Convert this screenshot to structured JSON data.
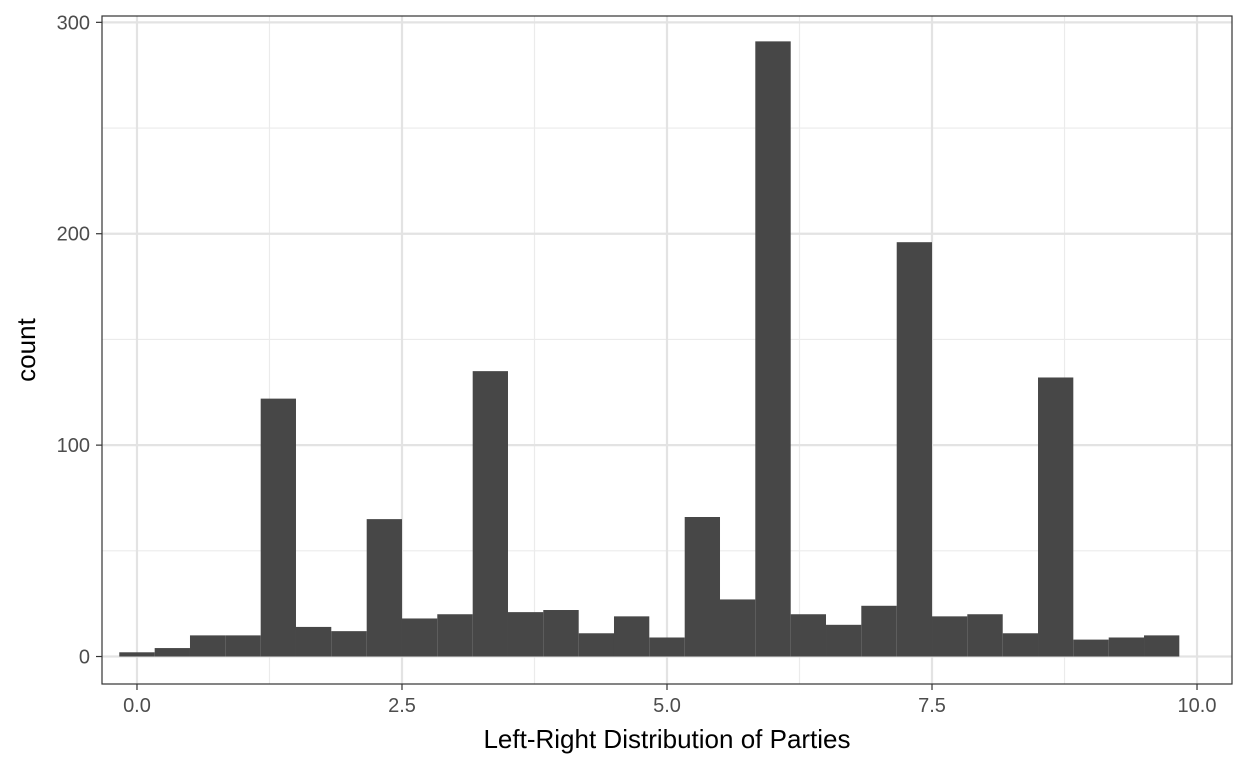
{
  "chart_data": {
    "type": "histogram",
    "title": "",
    "xlabel": "Left-Right Distribution of Parties",
    "ylabel": "count",
    "xlim": [
      -0.33,
      10.33
    ],
    "ylim": [
      -13,
      303
    ],
    "x_ticks": [
      0.0,
      2.5,
      5.0,
      7.5,
      10.0
    ],
    "x_tick_labels": [
      "0.0",
      "2.5",
      "5.0",
      "7.5",
      "10.0"
    ],
    "y_ticks": [
      0,
      100,
      200,
      300
    ],
    "y_tick_labels": [
      "0",
      "100",
      "200",
      "300"
    ],
    "y_minor_ticks": [
      50,
      150,
      250
    ],
    "grid": true,
    "bar_color": "#474747",
    "bins": [
      {
        "x0": -0.167,
        "x1": 0.167,
        "count": 2
      },
      {
        "x0": 0.167,
        "x1": 0.5,
        "count": 4
      },
      {
        "x0": 0.5,
        "x1": 0.833,
        "count": 10
      },
      {
        "x0": 0.833,
        "x1": 1.167,
        "count": 10
      },
      {
        "x0": 1.167,
        "x1": 1.5,
        "count": 122
      },
      {
        "x0": 1.5,
        "x1": 1.833,
        "count": 14
      },
      {
        "x0": 1.833,
        "x1": 2.167,
        "count": 12
      },
      {
        "x0": 2.167,
        "x1": 2.5,
        "count": 65
      },
      {
        "x0": 2.5,
        "x1": 2.833,
        "count": 18
      },
      {
        "x0": 2.833,
        "x1": 3.167,
        "count": 20
      },
      {
        "x0": 3.167,
        "x1": 3.5,
        "count": 135
      },
      {
        "x0": 3.5,
        "x1": 3.833,
        "count": 21
      },
      {
        "x0": 3.833,
        "x1": 4.167,
        "count": 22
      },
      {
        "x0": 4.167,
        "x1": 4.5,
        "count": 11
      },
      {
        "x0": 4.5,
        "x1": 4.833,
        "count": 19
      },
      {
        "x0": 4.833,
        "x1": 5.167,
        "count": 9
      },
      {
        "x0": 5.167,
        "x1": 5.5,
        "count": 66
      },
      {
        "x0": 5.5,
        "x1": 5.833,
        "count": 27
      },
      {
        "x0": 5.833,
        "x1": 6.167,
        "count": 291
      },
      {
        "x0": 6.167,
        "x1": 6.5,
        "count": 20
      },
      {
        "x0": 6.5,
        "x1": 6.833,
        "count": 15
      },
      {
        "x0": 6.833,
        "x1": 7.167,
        "count": 24
      },
      {
        "x0": 7.167,
        "x1": 7.5,
        "count": 196
      },
      {
        "x0": 7.5,
        "x1": 7.833,
        "count": 19
      },
      {
        "x0": 7.833,
        "x1": 8.167,
        "count": 20
      },
      {
        "x0": 8.167,
        "x1": 8.5,
        "count": 11
      },
      {
        "x0": 8.5,
        "x1": 8.833,
        "count": 132
      },
      {
        "x0": 8.833,
        "x1": 9.167,
        "count": 8
      },
      {
        "x0": 9.167,
        "x1": 9.5,
        "count": 9
      },
      {
        "x0": 9.5,
        "x1": 9.833,
        "count": 10
      }
    ]
  }
}
